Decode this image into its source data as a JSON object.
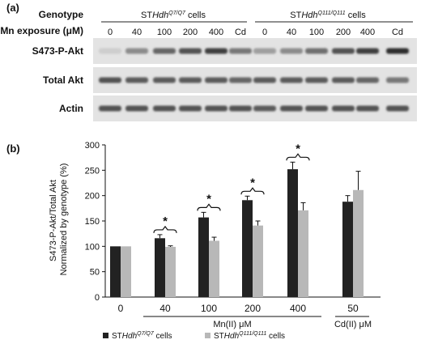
{
  "panel_a": {
    "label": "(a)",
    "genotype_label": "Genotype",
    "mn_exposure_label": "Mn exposure (μM)",
    "group1": {
      "prefix": "ST",
      "italic": "Hdh",
      "sup": "Q7/Q7",
      "suffix": " cells"
    },
    "group2": {
      "prefix": "ST",
      "italic": "Hdh",
      "sup": "Q111/Q111",
      "suffix": " cells"
    },
    "lanes_group1": [
      "0",
      "40",
      "100",
      "200",
      "400",
      "Cd"
    ],
    "lanes_group2": [
      "0",
      "40",
      "100",
      "200",
      "400",
      "Cd"
    ],
    "rows": [
      {
        "label": "S473-P-Akt",
        "band_intensity": [
          0.1,
          0.45,
          0.65,
          0.75,
          0.85,
          0.55,
          0.35,
          0.45,
          0.6,
          0.75,
          0.85,
          0.95
        ]
      },
      {
        "label": "Total Akt",
        "band_intensity": [
          0.75,
          0.7,
          0.7,
          0.7,
          0.7,
          0.65,
          0.7,
          0.7,
          0.7,
          0.7,
          0.65,
          0.55
        ]
      },
      {
        "label": "Actin",
        "band_intensity": [
          0.75,
          0.75,
          0.75,
          0.75,
          0.75,
          0.75,
          0.7,
          0.75,
          0.75,
          0.75,
          0.75,
          0.75
        ]
      }
    ]
  },
  "panel_b": {
    "label": "(b)",
    "star": "*",
    "legend_suffix": " cells"
  },
  "chart_data": {
    "type": "bar",
    "ylabel": "S473-P-Akt/Total Akt\nNormalized by genotype (%)",
    "ylim": [
      0,
      300
    ],
    "yticks": [
      0,
      50,
      100,
      150,
      200,
      250,
      300
    ],
    "categories": [
      "0",
      "40",
      "100",
      "200",
      "400",
      "50"
    ],
    "group_labels": [
      {
        "text": "Mn(II) μM",
        "categories": [
          "40",
          "100",
          "200",
          "400"
        ]
      },
      {
        "text": "Cd(II) μM",
        "categories": [
          "50"
        ]
      }
    ],
    "series": [
      {
        "name": "STHdh Q7/Q7 cells",
        "color": "#222222",
        "values": [
          100,
          116,
          157,
          191,
          252,
          188
        ],
        "errors": [
          0,
          7,
          10,
          8,
          14,
          12
        ]
      },
      {
        "name": "STHdh Q111/Q111 cells",
        "color": "#b8b8b8",
        "values": [
          100,
          99,
          111,
          141,
          171,
          211
        ],
        "errors": [
          0,
          2,
          7,
          9,
          15,
          37
        ]
      }
    ],
    "significant": [
      "40",
      "100",
      "200",
      "400"
    ],
    "legend_position": "bottom",
    "grid": false
  }
}
